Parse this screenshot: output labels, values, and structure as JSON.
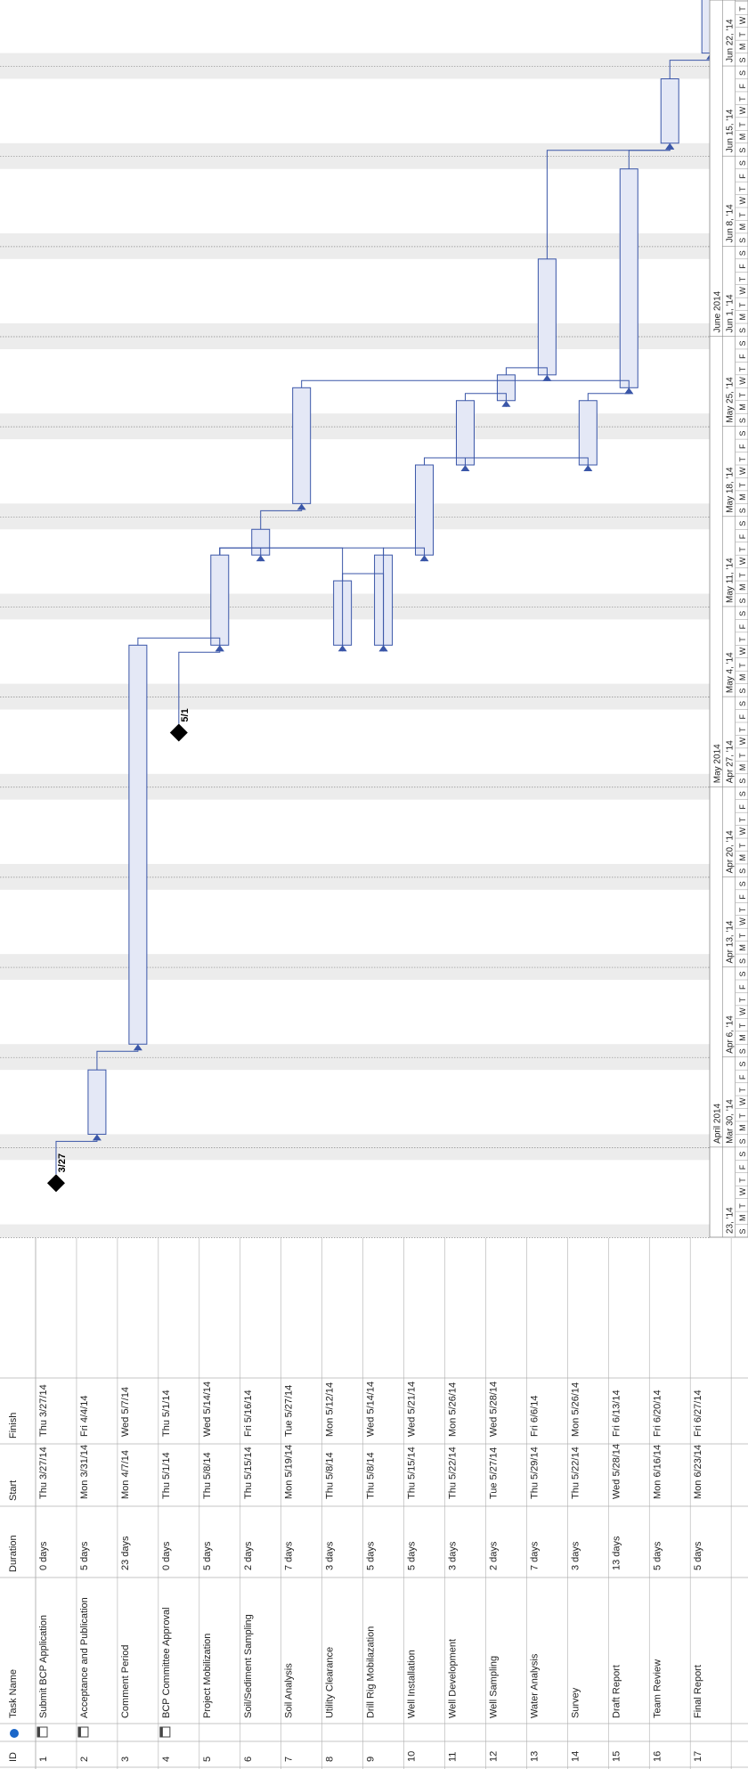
{
  "table": {
    "headers": {
      "id": "ID",
      "info": "i",
      "name": "Task Name",
      "duration": "Duration",
      "start": "Start",
      "finish": "Finish"
    },
    "rows": [
      {
        "id": "1",
        "icon": "calendar-icon",
        "name": "Submit BCP Application",
        "duration": "0 days",
        "start": "Thu 3/27/14",
        "finish": "Thu 3/27/14"
      },
      {
        "id": "2",
        "icon": "calendar-icon",
        "name": "Acceptance and Publication",
        "duration": "5 days",
        "start": "Mon 3/31/14",
        "finish": "Fri 4/4/14"
      },
      {
        "id": "3",
        "icon": "",
        "name": "Comment Period",
        "duration": "23 days",
        "start": "Mon 4/7/14",
        "finish": "Wed 5/7/14"
      },
      {
        "id": "4",
        "icon": "calendar-icon",
        "name": "BCP Committee Approval",
        "duration": "0 days",
        "start": "Thu 5/1/14",
        "finish": "Thu 5/1/14"
      },
      {
        "id": "5",
        "icon": "",
        "name": "Project Mobilization",
        "duration": "5 days",
        "start": "Thu 5/8/14",
        "finish": "Wed 5/14/14"
      },
      {
        "id": "6",
        "icon": "",
        "name": "Soil/Sediment Sampling",
        "duration": "2 days",
        "start": "Thu 5/15/14",
        "finish": "Fri 5/16/14"
      },
      {
        "id": "7",
        "icon": "",
        "name": "Soil Analysis",
        "duration": "7 days",
        "start": "Mon 5/19/14",
        "finish": "Tue 5/27/14"
      },
      {
        "id": "8",
        "icon": "",
        "name": "Utility Clearance",
        "duration": "3 days",
        "start": "Thu 5/8/14",
        "finish": "Mon 5/12/14"
      },
      {
        "id": "9",
        "icon": "",
        "name": "Drill Rig Mobilazation",
        "duration": "5 days",
        "start": "Thu 5/8/14",
        "finish": "Wed 5/14/14"
      },
      {
        "id": "10",
        "icon": "",
        "name": "Well Installation",
        "duration": "5 days",
        "start": "Thu 5/15/14",
        "finish": "Wed 5/21/14"
      },
      {
        "id": "11",
        "icon": "",
        "name": "Well Development",
        "duration": "3 days",
        "start": "Thu 5/22/14",
        "finish": "Mon 5/26/14"
      },
      {
        "id": "12",
        "icon": "",
        "name": "Well Sampling",
        "duration": "2 days",
        "start": "Tue 5/27/14",
        "finish": "Wed 5/28/14"
      },
      {
        "id": "13",
        "icon": "",
        "name": "Water Analysis",
        "duration": "7 days",
        "start": "Thu 5/29/14",
        "finish": "Fri 6/6/14"
      },
      {
        "id": "14",
        "icon": "",
        "name": "Survey",
        "duration": "3 days",
        "start": "Thu 5/22/14",
        "finish": "Mon 5/26/14"
      },
      {
        "id": "15",
        "icon": "",
        "name": "Draft Report",
        "duration": "13 days",
        "start": "Wed 5/28/14",
        "finish": "Fri 6/13/14"
      },
      {
        "id": "16",
        "icon": "",
        "name": "Team Review",
        "duration": "5 days",
        "start": "Mon 6/16/14",
        "finish": "Fri 6/20/14"
      },
      {
        "id": "17",
        "icon": "",
        "name": "Final Report",
        "duration": "5 days",
        "start": "Mon 6/23/14",
        "finish": "Fri 6/27/14"
      }
    ]
  },
  "timescale": {
    "start_date": "2014-03-23",
    "end_date": "2014-06-28",
    "first_partial_label": "23, '14",
    "months": [
      {
        "label": "April 2014",
        "start": "2014-03-30",
        "end": "2014-04-27"
      },
      {
        "label": "May 2014",
        "start": "2014-04-27",
        "end": "2014-06-01"
      },
      {
        "label": "June 2014",
        "start": "2014-06-01",
        "end": "2014-06-28"
      }
    ],
    "weeks": [
      {
        "label": "Mar 30, '14",
        "start": "2014-03-30"
      },
      {
        "label": "Apr 6, '14",
        "start": "2014-04-06"
      },
      {
        "label": "Apr 13, '14",
        "start": "2014-04-13"
      },
      {
        "label": "Apr 20, '14",
        "start": "2014-04-20"
      },
      {
        "label": "Apr 27, '14",
        "start": "2014-04-27"
      },
      {
        "label": "May 4, '14",
        "start": "2014-05-04"
      },
      {
        "label": "May 11, '14",
        "start": "2014-05-11"
      },
      {
        "label": "May 18, '14",
        "start": "2014-05-18"
      },
      {
        "label": "May 25, '14",
        "start": "2014-05-25"
      },
      {
        "label": "Jun 1, '14",
        "start": "2014-06-01"
      },
      {
        "label": "Jun 8, '14",
        "start": "2014-06-08"
      },
      {
        "label": "Jun 15, '14",
        "start": "2014-06-15"
      },
      {
        "label": "Jun 22, '14",
        "start": "2014-06-22"
      }
    ],
    "day_letters": [
      "S",
      "M",
      "T",
      "W",
      "T",
      "F",
      "S"
    ]
  },
  "milestone_labels": {
    "1": "3/27",
    "4": "5/1"
  },
  "links": [
    [
      1,
      2
    ],
    [
      2,
      3
    ],
    [
      3,
      5
    ],
    [
      4,
      5
    ],
    [
      5,
      6
    ],
    [
      6,
      7
    ],
    [
      5,
      8
    ],
    [
      5,
      9
    ],
    [
      8,
      9
    ],
    [
      9,
      10
    ],
    [
      10,
      11
    ],
    [
      11,
      12
    ],
    [
      12,
      13
    ],
    [
      10,
      14
    ],
    [
      13,
      16
    ],
    [
      14,
      15
    ],
    [
      15,
      16
    ],
    [
      16,
      17
    ],
    [
      7,
      15
    ]
  ],
  "colors": {
    "bar_fill": "#e4e8f6",
    "bar_stroke": "#3a56a8",
    "link": "#3a56a8",
    "milestone": "#000000",
    "nonwork": "#ececec",
    "grid": "#b0b0b0",
    "text": "#222222"
  }
}
